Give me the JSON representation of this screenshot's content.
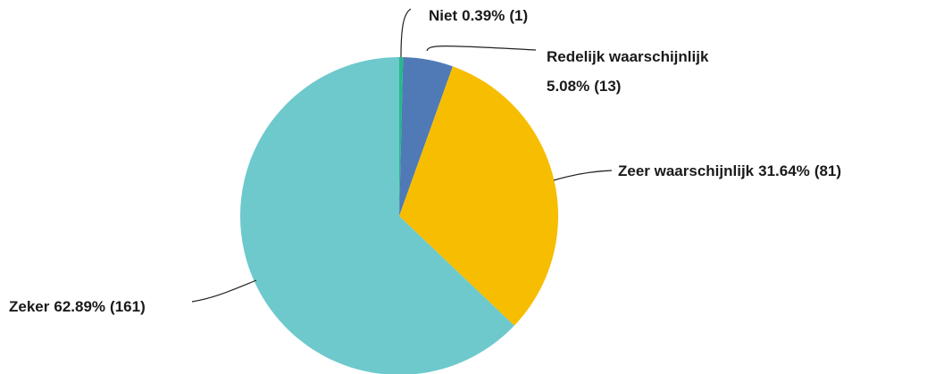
{
  "chart_data": {
    "type": "pie",
    "categories": [
      "Niet",
      "Redelijk waarschijnlijk",
      "Zeer waarschijnlijk",
      "Zeker"
    ],
    "values": [
      0.39,
      5.08,
      31.64,
      62.89
    ],
    "value_labels": [
      "0.39%",
      "5.08%",
      "31.64%",
      "62.89%"
    ],
    "counts": [
      1,
      13,
      81,
      161
    ],
    "count_labels": [
      "(1)",
      "(13)",
      "(81)",
      "(161)"
    ],
    "colors": [
      "#22bb8a",
      "#4f7ab5",
      "#f7bd00",
      "#6ec9cc"
    ]
  }
}
